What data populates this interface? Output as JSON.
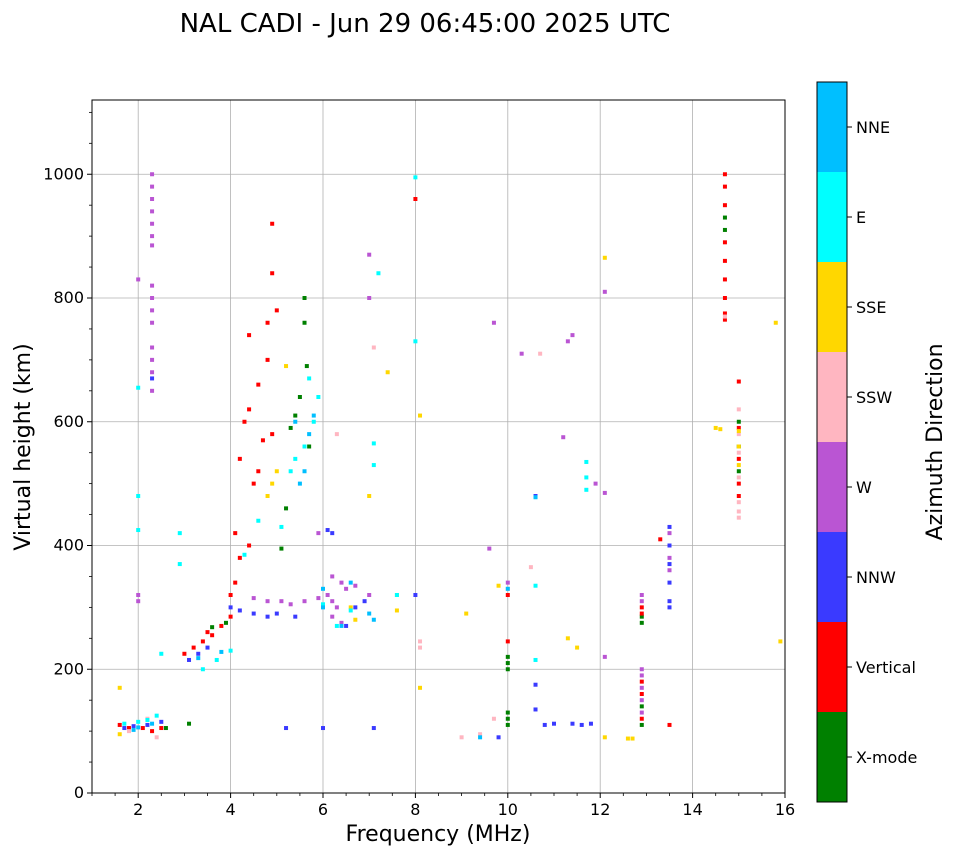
{
  "chart_data": {
    "type": "scatter",
    "title": "NAL CADI - Jun 29 06:45:00 2025 UTC",
    "xlabel": "Frequency (MHz)",
    "ylabel": "Virtual height (km)",
    "xlim": [
      1,
      16
    ],
    "ylim": [
      0,
      1120
    ],
    "xticks": [
      2,
      4,
      6,
      8,
      10,
      12,
      14,
      16
    ],
    "yticks": [
      0,
      200,
      400,
      600,
      800,
      1000
    ],
    "grid": true,
    "colorbar": {
      "label": "Azimuth Direction",
      "categories": [
        "X-mode",
        "Vertical",
        "NNW",
        "W",
        "SSW",
        "SSE",
        "E",
        "NNE"
      ],
      "colors": [
        "#008000",
        "#ff0000",
        "#3a3aff",
        "#ba55d3",
        "#ffb6c1",
        "#ffd700",
        "#00ffff",
        "#00bfff"
      ]
    },
    "series": [
      {
        "name": "X-mode",
        "points": [
          [
            2.6,
            105
          ],
          [
            3.1,
            112
          ],
          [
            3.6,
            268
          ],
          [
            3.9,
            275
          ],
          [
            5.1,
            395
          ],
          [
            5.2,
            460
          ],
          [
            5.3,
            590
          ],
          [
            5.4,
            610
          ],
          [
            5.5,
            640
          ],
          [
            5.6,
            760
          ],
          [
            5.6,
            800
          ],
          [
            5.65,
            690
          ],
          [
            5.7,
            560
          ],
          [
            10.0,
            110
          ],
          [
            10.0,
            120
          ],
          [
            10.0,
            130
          ],
          [
            10.0,
            200
          ],
          [
            10.0,
            210
          ],
          [
            10.0,
            220
          ],
          [
            12.9,
            275
          ],
          [
            12.9,
            285
          ],
          [
            12.9,
            110
          ],
          [
            12.9,
            140
          ],
          [
            14.7,
            930
          ],
          [
            14.7,
            910
          ],
          [
            15.0,
            560
          ],
          [
            15.0,
            520
          ],
          [
            15.0,
            600
          ]
        ]
      },
      {
        "name": "Vertical",
        "points": [
          [
            1.6,
            110
          ],
          [
            1.8,
            105
          ],
          [
            2.1,
            105
          ],
          [
            2.3,
            100
          ],
          [
            2.5,
            105
          ],
          [
            3.0,
            225
          ],
          [
            3.2,
            235
          ],
          [
            3.4,
            245
          ],
          [
            3.5,
            260
          ],
          [
            3.6,
            255
          ],
          [
            3.8,
            270
          ],
          [
            4.0,
            285
          ],
          [
            4.0,
            320
          ],
          [
            4.1,
            340
          ],
          [
            4.2,
            380
          ],
          [
            4.4,
            400
          ],
          [
            4.2,
            540
          ],
          [
            4.5,
            500
          ],
          [
            4.6,
            520
          ],
          [
            4.7,
            570
          ],
          [
            4.9,
            580
          ],
          [
            4.4,
            620
          ],
          [
            4.6,
            660
          ],
          [
            4.8,
            700
          ],
          [
            4.4,
            740
          ],
          [
            4.8,
            760
          ],
          [
            4.9,
            840
          ],
          [
            4.9,
            920
          ],
          [
            5.0,
            780
          ],
          [
            4.3,
            600
          ],
          [
            4.1,
            420
          ],
          [
            10.0,
            245
          ],
          [
            10.0,
            320
          ],
          [
            12.9,
            300
          ],
          [
            12.9,
            290
          ],
          [
            12.9,
            160
          ],
          [
            12.9,
            180
          ],
          [
            12.9,
            120
          ],
          [
            13.5,
            110
          ],
          [
            13.3,
            410
          ],
          [
            14.7,
            1000
          ],
          [
            14.7,
            980
          ],
          [
            14.7,
            950
          ],
          [
            14.7,
            890
          ],
          [
            14.7,
            860
          ],
          [
            14.7,
            830
          ],
          [
            14.7,
            800
          ],
          [
            14.7,
            775
          ],
          [
            14.7,
            765
          ],
          [
            15.0,
            665
          ],
          [
            15.0,
            590
          ],
          [
            15.0,
            540
          ],
          [
            15.0,
            500
          ],
          [
            15.0,
            480
          ],
          [
            8.0,
            960
          ]
        ]
      },
      {
        "name": "NNW",
        "points": [
          [
            1.7,
            105
          ],
          [
            1.9,
            108
          ],
          [
            2.2,
            110
          ],
          [
            2.5,
            115
          ],
          [
            3.1,
            215
          ],
          [
            3.3,
            225
          ],
          [
            3.5,
            235
          ],
          [
            4.0,
            300
          ],
          [
            4.2,
            295
          ],
          [
            4.5,
            290
          ],
          [
            4.8,
            285
          ],
          [
            5.0,
            290
          ],
          [
            5.4,
            285
          ],
          [
            6.1,
            425
          ],
          [
            6.2,
            420
          ],
          [
            6.5,
            270
          ],
          [
            6.7,
            300
          ],
          [
            6.9,
            310
          ],
          [
            5.2,
            105
          ],
          [
            6.0,
            105
          ],
          [
            7.1,
            105
          ],
          [
            10.6,
            480
          ],
          [
            10.6,
            175
          ],
          [
            10.6,
            135
          ],
          [
            10.8,
            110
          ],
          [
            11.0,
            112
          ],
          [
            11.4,
            112
          ],
          [
            11.6,
            110
          ],
          [
            11.8,
            112
          ],
          [
            9.8,
            90
          ],
          [
            13.5,
            430
          ],
          [
            13.5,
            400
          ],
          [
            13.5,
            370
          ],
          [
            13.5,
            340
          ],
          [
            13.5,
            310
          ],
          [
            13.5,
            300
          ],
          [
            2.3,
            670
          ],
          [
            8.0,
            320
          ]
        ]
      },
      {
        "name": "W",
        "points": [
          [
            2.3,
            1000
          ],
          [
            2.3,
            980
          ],
          [
            2.3,
            960
          ],
          [
            2.3,
            940
          ],
          [
            2.3,
            920
          ],
          [
            2.3,
            900
          ],
          [
            2.3,
            885
          ],
          [
            2.3,
            820
          ],
          [
            2.3,
            800
          ],
          [
            2.3,
            780
          ],
          [
            2.3,
            760
          ],
          [
            2.3,
            720
          ],
          [
            2.3,
            700
          ],
          [
            2.3,
            680
          ],
          [
            2.3,
            650
          ],
          [
            2.0,
            830
          ],
          [
            4.5,
            315
          ],
          [
            4.8,
            310
          ],
          [
            5.1,
            310
          ],
          [
            5.3,
            305
          ],
          [
            5.6,
            310
          ],
          [
            5.9,
            315
          ],
          [
            6.1,
            320
          ],
          [
            6.2,
            310
          ],
          [
            6.3,
            300
          ],
          [
            6.4,
            340
          ],
          [
            6.5,
            330
          ],
          [
            6.7,
            335
          ],
          [
            7.0,
            320
          ],
          [
            6.2,
            285
          ],
          [
            6.4,
            275
          ],
          [
            5.9,
            420
          ],
          [
            6.2,
            350
          ],
          [
            9.7,
            760
          ],
          [
            10.3,
            710
          ],
          [
            11.3,
            730
          ],
          [
            11.4,
            740
          ],
          [
            11.2,
            575
          ],
          [
            11.9,
            500
          ],
          [
            12.1,
            485
          ],
          [
            12.1,
            220
          ],
          [
            12.1,
            810
          ],
          [
            12.9,
            320
          ],
          [
            12.9,
            310
          ],
          [
            12.9,
            200
          ],
          [
            12.9,
            190
          ],
          [
            12.9,
            170
          ],
          [
            12.9,
            150
          ],
          [
            12.9,
            130
          ],
          [
            13.5,
            420
          ],
          [
            13.5,
            380
          ],
          [
            13.5,
            360
          ],
          [
            2.0,
            310
          ],
          [
            2.0,
            320
          ],
          [
            7.0,
            800
          ],
          [
            7.0,
            870
          ],
          [
            9.6,
            395
          ],
          [
            10.0,
            340
          ]
        ]
      },
      {
        "name": "SSW",
        "points": [
          [
            1.8,
            100
          ],
          [
            2.4,
            90
          ],
          [
            2.2,
            120
          ],
          [
            9.0,
            90
          ],
          [
            9.4,
            95
          ],
          [
            10.0,
            330
          ],
          [
            10.5,
            365
          ],
          [
            10.7,
            710
          ],
          [
            15.0,
            620
          ],
          [
            15.0,
            580
          ],
          [
            15.0,
            550
          ],
          [
            15.0,
            510
          ],
          [
            15.0,
            470
          ],
          [
            15.0,
            455
          ],
          [
            15.0,
            445
          ],
          [
            14.7,
            770
          ],
          [
            6.3,
            580
          ],
          [
            8.1,
            245
          ],
          [
            8.1,
            235
          ],
          [
            9.7,
            120
          ],
          [
            7.1,
            720
          ]
        ]
      },
      {
        "name": "SSE",
        "points": [
          [
            1.6,
            95
          ],
          [
            1.6,
            170
          ],
          [
            4.8,
            480
          ],
          [
            4.9,
            500
          ],
          [
            5.0,
            520
          ],
          [
            5.2,
            690
          ],
          [
            6.6,
            300
          ],
          [
            6.7,
            280
          ],
          [
            7.6,
            320
          ],
          [
            7.6,
            295
          ],
          [
            8.1,
            170
          ],
          [
            8.1,
            610
          ],
          [
            9.1,
            290
          ],
          [
            9.8,
            335
          ],
          [
            11.3,
            250
          ],
          [
            11.5,
            235
          ],
          [
            12.1,
            90
          ],
          [
            12.1,
            865
          ],
          [
            12.6,
            88
          ],
          [
            12.7,
            88
          ],
          [
            14.5,
            590
          ],
          [
            14.6,
            588
          ],
          [
            15.8,
            760
          ],
          [
            15.9,
            245
          ],
          [
            15.0,
            585
          ],
          [
            15.0,
            560
          ],
          [
            15.0,
            530
          ],
          [
            7.0,
            480
          ],
          [
            7.4,
            680
          ]
        ]
      },
      {
        "name": "E",
        "points": [
          [
            1.7,
            112
          ],
          [
            2.0,
            115
          ],
          [
            2.2,
            118
          ],
          [
            2.4,
            125
          ],
          [
            2.9,
            420
          ],
          [
            2.9,
            370
          ],
          [
            2.5,
            225
          ],
          [
            3.4,
            200
          ],
          [
            3.7,
            215
          ],
          [
            4.0,
            230
          ],
          [
            4.3,
            385
          ],
          [
            4.6,
            440
          ],
          [
            5.1,
            430
          ],
          [
            5.4,
            540
          ],
          [
            5.6,
            560
          ],
          [
            5.8,
            600
          ],
          [
            5.9,
            640
          ],
          [
            5.3,
            520
          ],
          [
            5.7,
            670
          ],
          [
            6.0,
            305
          ],
          [
            6.6,
            295
          ],
          [
            6.3,
            270
          ],
          [
            7.2,
            840
          ],
          [
            7.1,
            565
          ],
          [
            7.1,
            530
          ],
          [
            7.6,
            320
          ],
          [
            8.0,
            995
          ],
          [
            8.0,
            730
          ],
          [
            10.6,
            335
          ],
          [
            10.6,
            215
          ],
          [
            11.7,
            535
          ],
          [
            11.7,
            510
          ],
          [
            11.7,
            490
          ],
          [
            2.0,
            480
          ],
          [
            2.0,
            655
          ],
          [
            2.0,
            425
          ]
        ]
      },
      {
        "name": "NNE",
        "points": [
          [
            1.9,
            102
          ],
          [
            2.0,
            106
          ],
          [
            2.3,
            112
          ],
          [
            3.3,
            218
          ],
          [
            3.8,
            228
          ],
          [
            5.5,
            500
          ],
          [
            5.6,
            520
          ],
          [
            5.7,
            580
          ],
          [
            5.8,
            610
          ],
          [
            5.4,
            600
          ],
          [
            6.0,
            330
          ],
          [
            6.0,
            300
          ],
          [
            6.4,
            270
          ],
          [
            6.6,
            340
          ],
          [
            7.0,
            290
          ],
          [
            7.1,
            280
          ],
          [
            10.6,
            478
          ],
          [
            10.0,
            330
          ],
          [
            9.4,
            90
          ]
        ]
      }
    ]
  }
}
